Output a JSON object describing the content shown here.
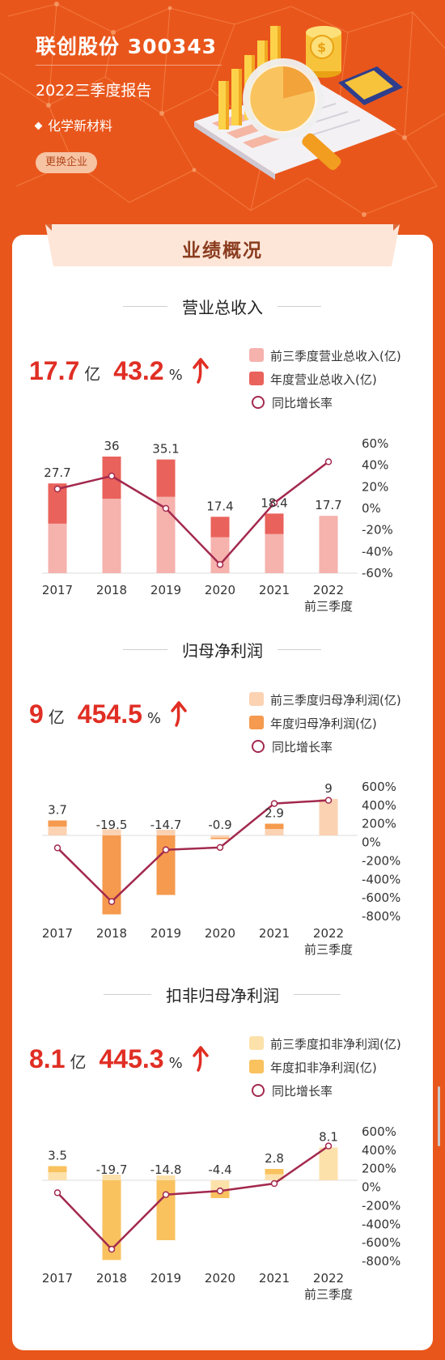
{
  "header": {
    "company": "联创股份 300343",
    "report": "2022三季度报告",
    "industry": "化学新材料",
    "change_button": "更换企业"
  },
  "card_title": "业绩概况",
  "colors": {
    "background": "#e9561b",
    "red_text": "#e02e24",
    "growth_line": "#a3294e"
  },
  "sections": [
    {
      "title": "营业总收入",
      "kpi_value": "17.7",
      "kpi_unit": "亿",
      "kpi_pct": "43.2",
      "kpi_pct_symbol": "%",
      "legend": [
        "前三季度营业总收入(亿)",
        "年度营业总收入(亿)",
        "同比增长率"
      ],
      "color_q3": "#f6b2ad",
      "color_year": "#e9625b"
    },
    {
      "title": "归母净利润",
      "kpi_value": "9",
      "kpi_unit": "亿",
      "kpi_pct": "454.5",
      "kpi_pct_symbol": "%",
      "legend": [
        "前三季度归母净利润(亿)",
        "年度归母净利润(亿)",
        "同比增长率"
      ],
      "color_q3": "#fbd2b2",
      "color_year": "#f59a4e"
    },
    {
      "title": "扣非归母净利润",
      "kpi_value": "8.1",
      "kpi_unit": "亿",
      "kpi_pct": "445.3",
      "kpi_pct_symbol": "%",
      "legend": [
        "前三季度扣非净利润(亿)",
        "年度扣非净利润(亿)",
        "同比增长率"
      ],
      "color_q3": "#fde1ab",
      "color_year": "#f9c25f"
    }
  ],
  "chart_data": [
    {
      "type": "bar",
      "title": "营业总收入",
      "categories": [
        "2017",
        "2018",
        "2019",
        "2020",
        "2021",
        "2022\n前三季度"
      ],
      "series": [
        {
          "name": "前三季度营业总收入(亿)",
          "values": [
            15.3,
            23.0,
            23.6,
            11.1,
            12.1,
            17.7
          ]
        },
        {
          "name": "年度营业总收入(亿)",
          "values": [
            27.7,
            36,
            35.1,
            17.4,
            18.4,
            null
          ]
        },
        {
          "name": "同比增长率",
          "axis": "right",
          "values": [
            18,
            30,
            0,
            -52,
            5,
            43.2
          ]
        }
      ],
      "data_labels": [
        "27.7",
        "36",
        "35.1",
        "17.4",
        "18.4",
        "17.7"
      ],
      "ylim": [
        0,
        40
      ],
      "y2_ticks": [
        "60%",
        "40%",
        "20%",
        "0%",
        "-20%",
        "-40%",
        "-60%"
      ],
      "y2lim": [
        -60,
        60
      ]
    },
    {
      "type": "bar",
      "title": "归母净利润",
      "categories": [
        "2017",
        "2018",
        "2019",
        "2020",
        "2021",
        "2022\n前三季度"
      ],
      "series": [
        {
          "name": "前三季度归母净利润(亿)",
          "values": [
            2.2,
            1.5,
            1.4,
            -0.6,
            1.6,
            9
          ]
        },
        {
          "name": "年度归母净利润(亿)",
          "values": [
            3.7,
            -19.5,
            -14.7,
            -0.9,
            2.9,
            null
          ]
        },
        {
          "name": "同比增长率",
          "axis": "right",
          "values": [
            -60,
            -640,
            -80,
            -55,
            420,
            454.5
          ]
        }
      ],
      "data_labels": [
        "3.7",
        "-19.5",
        "-14.7",
        "-0.9",
        "2.9",
        "9"
      ],
      "ylim": [
        -20,
        12
      ],
      "y2_ticks": [
        "600%",
        "400%",
        "200%",
        "0%",
        "-200%",
        "-400%",
        "-600%",
        "-800%"
      ],
      "y2lim": [
        -800,
        600
      ]
    },
    {
      "type": "bar",
      "title": "扣非归母净利润",
      "categories": [
        "2017",
        "2018",
        "2019",
        "2020",
        "2021",
        "2022\n前三季度"
      ],
      "series": [
        {
          "name": "前三季度扣非净利润(亿)",
          "values": [
            2.0,
            1.4,
            1.2,
            -2.4,
            1.5,
            8.1
          ]
        },
        {
          "name": "年度扣非净利润(亿)",
          "values": [
            3.5,
            -19.7,
            -14.8,
            -4.4,
            2.8,
            null
          ]
        },
        {
          "name": "同比增长率",
          "axis": "right",
          "values": [
            -60,
            -670,
            -80,
            -40,
            40,
            445.3
          ]
        }
      ],
      "data_labels": [
        "3.5",
        "-19.7",
        "-14.8",
        "-4.4",
        "2.8",
        "8.1"
      ],
      "ylim": [
        -20,
        12
      ],
      "y2_ticks": [
        "600%",
        "400%",
        "200%",
        "0%",
        "-200%",
        "-400%",
        "-600%",
        "-800%"
      ],
      "y2lim": [
        -800,
        600
      ]
    }
  ]
}
